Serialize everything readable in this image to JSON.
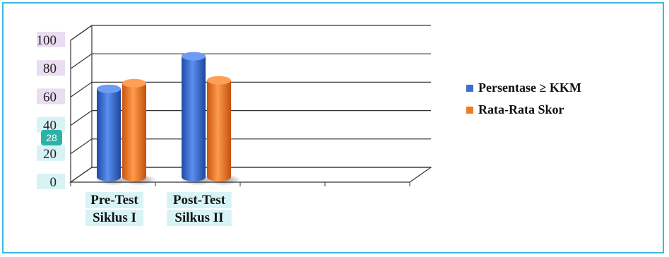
{
  "chart_data": {
    "type": "bar",
    "categories": [
      [
        "Pre-Test",
        "Siklus I"
      ],
      [
        "Post-Test",
        "Silkus II"
      ]
    ],
    "series": [
      {
        "name": "Persentase ≥ KKM",
        "color": "#3a6fd1",
        "values": [
          60,
          83
        ]
      },
      {
        "name": "Rata-Rata Skor",
        "color": "#f07a22",
        "values": [
          64,
          66
        ]
      }
    ],
    "yticks": [
      "0",
      "20",
      "40",
      "60",
      "80",
      "100"
    ],
    "ylim": [
      0,
      100
    ],
    "grid": true,
    "legend": "right",
    "style": "3d-cylinder",
    "badge": {
      "text": "28",
      "color": "#2bb3a8"
    }
  }
}
